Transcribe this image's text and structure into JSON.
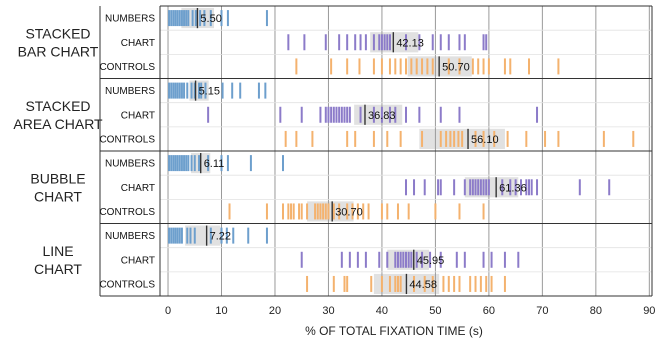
{
  "chart_data": {
    "type": "strip",
    "xlabel": "% OF TOTAL FIXATION TIME (s)",
    "xlim": [
      -1.5,
      90.5
    ],
    "xticks": [
      0,
      10,
      20,
      30,
      40,
      50,
      60,
      70,
      80,
      90
    ],
    "row_labels": [
      "NUMBERS",
      "CHART",
      "CONTROLS"
    ],
    "colors": {
      "NUMBERS": "#6d9fcd",
      "CHART": "#8c7bc9",
      "CONTROLS": "#f4b26e",
      "band": "#dcdcdc",
      "median": "#333333"
    },
    "groups": [
      {
        "label_lines": [
          "STACKED",
          "BAR CHART"
        ],
        "rows": [
          {
            "name": "NUMBERS",
            "median": 5.5,
            "band": [
              2.5,
              8.6
            ],
            "values": [
              0.2,
              0.6,
              1.0,
              1.4,
              1.8,
              2.2,
              2.6,
              3.0,
              3.4,
              3.8,
              4.6,
              5.2,
              6.0,
              6.8,
              8.0,
              10.0,
              11.2,
              18.5
            ]
          },
          {
            "name": "CHART",
            "median": 42.13,
            "band": [
              37.8,
              46.8
            ],
            "values": [
              22.5,
              25.5,
              29.5,
              32.0,
              33.5,
              35.0,
              36.0,
              37.0,
              38.5,
              39.5,
              40.0,
              40.5,
              41.0,
              41.5,
              44.5,
              47.0,
              49.5,
              51.0,
              52.5,
              54.5,
              55.5,
              59.0,
              59.5
            ]
          },
          {
            "name": "CONTROLS",
            "median": 50.7,
            "band": [
              44.8,
              56.8
            ],
            "values": [
              24.0,
              30.5,
              33.5,
              35.8,
              38.5,
              40.0,
              41.5,
              42.5,
              43.5,
              44.5,
              45.5,
              46.5,
              47.5,
              48.5,
              49.5,
              52.5,
              54.5,
              57.0,
              58.0,
              59.0,
              60.0,
              63.0,
              64.0,
              67.5,
              73.0
            ]
          }
        ]
      },
      {
        "label_lines": [
          "STACKED",
          "AREA CHART"
        ],
        "rows": [
          {
            "name": "NUMBERS",
            "median": 5.15,
            "band": [
              4.0,
              7.6
            ],
            "values": [
              0.2,
              0.6,
              1.0,
              1.4,
              1.8,
              2.2,
              2.6,
              3.0,
              3.6,
              4.4,
              5.0,
              5.8,
              6.2,
              7.0,
              10.2,
              12.0,
              13.5,
              17.0,
              18.2
            ]
          },
          {
            "name": "CHART",
            "median": 36.83,
            "band": [
              34.8,
              43.8
            ],
            "values": [
              7.5,
              21.0,
              25.0,
              28.5,
              29.5,
              30.0,
              30.5,
              31.0,
              31.5,
              32.0,
              32.5,
              33.0,
              33.5,
              34.0,
              36.0,
              38.5,
              40.0,
              41.5,
              42.5,
              44.5,
              47.0,
              51.0,
              54.5,
              69.0
            ]
          },
          {
            "name": "CONTROLS",
            "median": 56.1,
            "band": [
              47.0,
              63.0
            ],
            "values": [
              22.0,
              24.0,
              27.0,
              33.5,
              35.0,
              38.5,
              41.0,
              43.5,
              47.5,
              51.0,
              52.0,
              52.8,
              53.5,
              54.3,
              55.0,
              57.5,
              59.0,
              61.0,
              63.5,
              67.0,
              70.5,
              73.0,
              81.5,
              87.0
            ]
          }
        ]
      },
      {
        "label_lines": [
          "BUBBLE",
          "CHART"
        ],
        "rows": [
          {
            "name": "NUMBERS",
            "median": 6.11,
            "band": [
              4.3,
              7.9
            ],
            "values": [
              0.2,
              0.6,
              1.0,
              1.4,
              1.8,
              2.2,
              2.6,
              3.0,
              3.4,
              3.8,
              4.4,
              5.0,
              5.8,
              7.5,
              10.0,
              11.2,
              15.5,
              21.5
            ]
          },
          {
            "name": "CHART",
            "median": 61.36,
            "band": [
              55.5,
              65.5
            ],
            "values": [
              44.5,
              46.0,
              48.0,
              50.5,
              51.0,
              53.5,
              55.5,
              56.5,
              57.0,
              57.5,
              58.0,
              58.5,
              59.0,
              59.5,
              60.0,
              62.5,
              64.0,
              65.0,
              66.0,
              67.0,
              67.5,
              68.0,
              69.0,
              77.0,
              82.5
            ]
          },
          {
            "name": "CONTROLS",
            "median": 30.7,
            "band": [
              26.0,
              34.7
            ],
            "values": [
              11.5,
              18.5,
              21.5,
              22.5,
              23.0,
              23.5,
              24.5,
              25.0,
              26.0,
              27.5,
              28.0,
              28.5,
              29.0,
              29.5,
              30.0,
              31.0,
              32.0,
              33.5,
              34.5,
              35.5,
              36.5,
              37.5,
              40.0,
              41.0,
              43.0,
              45.0,
              50.0,
              54.5,
              59.0
            ]
          }
        ]
      },
      {
        "label_lines": [
          "LINE",
          "CHART"
        ],
        "rows": [
          {
            "name": "NUMBERS",
            "median": 7.22,
            "band": [
              3.2,
              9.8
            ],
            "values": [
              0.2,
              0.6,
              1.0,
              1.4,
              1.8,
              2.2,
              2.6,
              3.6,
              4.2,
              5.0,
              8.0,
              10.0,
              11.0,
              12.2,
              15.0,
              18.5
            ]
          },
          {
            "name": "CHART",
            "median": 45.95,
            "band": [
              41.0,
              48.8
            ],
            "values": [
              25.0,
              32.5,
              34.0,
              35.5,
              37.0,
              39.5,
              41.0,
              42.5,
              43.0,
              43.5,
              44.0,
              44.5,
              45.0,
              45.5,
              46.5,
              47.5,
              49.0,
              51.0,
              54.0,
              55.5,
              59.0,
              60.5,
              63.0,
              65.5
            ]
          },
          {
            "name": "CONTROLS",
            "median": 44.58,
            "band": [
              38.5,
              50.7
            ],
            "values": [
              26.0,
              31.0,
              33.0,
              33.5,
              38.0,
              40.0,
              41.5,
              42.5,
              43.0,
              43.5,
              46.0,
              48.0,
              49.5,
              51.5,
              52.5,
              53.5,
              54.5,
              56.5,
              57.5,
              58.5,
              59.5,
              60.5,
              63.0
            ]
          }
        ]
      }
    ]
  }
}
